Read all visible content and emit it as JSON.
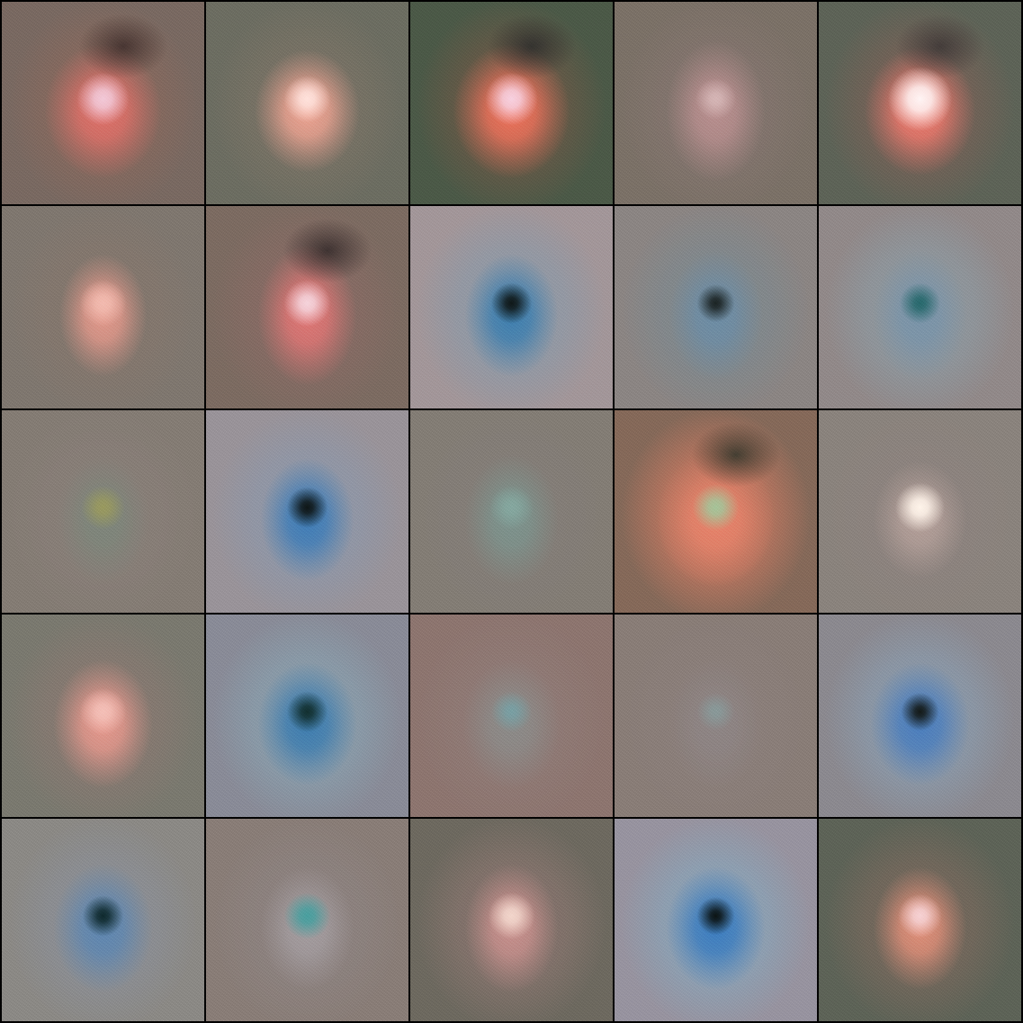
{
  "grid": {
    "rows": 5,
    "cols": 5,
    "tiles": [
      {
        "bg": "#7a6a62",
        "halo": "#8b6a5e",
        "blob": "#e0716a",
        "core": "#f2c9d8",
        "dark": "#3a2a28",
        "blobShape": [
          1.0,
          1.15
        ],
        "coreSize": 0.12
      },
      {
        "bg": "#6d6e62",
        "halo": "#7c7467",
        "blob": "#eea493",
        "core": "#ffe2dc",
        "dark": "",
        "blobShape": [
          0.9,
          1.05
        ],
        "coreSize": 0.1
      },
      {
        "bg": "#4c5a48",
        "halo": "#6f5a48",
        "blob": "#f0735c",
        "core": "#f7d1e0",
        "dark": "#2a2a2a",
        "blobShape": [
          1.0,
          1.15
        ],
        "coreSize": 0.12
      },
      {
        "bg": "#7c7268",
        "halo": "#857670",
        "blob": "#b99090",
        "core": "#d5b6b6",
        "dark": "",
        "blobShape": [
          0.85,
          1.2
        ],
        "coreSize": 0.08
      },
      {
        "bg": "#5e6458",
        "halo": "#7a6258",
        "blob": "#f07a6e",
        "core": "#fff4f4",
        "dark": "#3a3434",
        "blobShape": [
          0.95,
          1.1
        ],
        "coreSize": 0.16
      },
      {
        "bg": "#807870",
        "halo": "#86786e",
        "blob": "#e2998c",
        "core": "#f2bbb0",
        "dark": "",
        "blobShape": [
          0.75,
          1.05
        ],
        "coreSize": 0.1
      },
      {
        "bg": "#7d6c62",
        "halo": "#8a6c66",
        "blob": "#e07776",
        "core": "#f5d4dc",
        "dark": "#2e2626",
        "blobShape": [
          0.85,
          1.2
        ],
        "coreSize": 0.1
      },
      {
        "bg": "#a3979a",
        "halo": "#8d9aa8",
        "blob": "#3e80b0",
        "core": "#101818",
        "dark": "",
        "blobShape": [
          0.8,
          1.05
        ],
        "coreSize": 0.08
      },
      {
        "bg": "#8c8684",
        "halo": "#7f8a90",
        "blob": "#6e8ea6",
        "core": "#1c2424",
        "dark": "",
        "blobShape": [
          0.8,
          1.1
        ],
        "coreSize": 0.07
      },
      {
        "bg": "#928a8a",
        "halo": "#8e9aa2",
        "blob": "#7b95aa",
        "core": "#286a6e",
        "dark": "",
        "blobShape": [
          0.8,
          1.1
        ],
        "coreSize": 0.08
      },
      {
        "bg": "#857d75",
        "halo": "#8a807a",
        "blob": "#7f877c",
        "core": "#9a9a60",
        "dark": "",
        "blobShape": [
          0.8,
          1.1
        ],
        "coreSize": 0.09
      },
      {
        "bg": "#9a949a",
        "halo": "#8e98aa",
        "blob": "#3f7eb8",
        "core": "#0f1616",
        "dark": "",
        "blobShape": [
          0.8,
          1.05
        ],
        "coreSize": 0.08
      },
      {
        "bg": "#847e76",
        "halo": "#857f7a",
        "blob": "#7e948e",
        "core": "#86a8a0",
        "dark": "",
        "blobShape": [
          0.8,
          1.1
        ],
        "coreSize": 0.09
      },
      {
        "bg": "#866a5a",
        "halo": "#c97a62",
        "blob": "#e7846c",
        "core": "#a6c49a",
        "dark": "#2a3228",
        "blobShape": [
          1.0,
          1.15
        ],
        "coreSize": 0.1
      },
      {
        "bg": "#8b847e",
        "halo": "#8e8480",
        "blob": "#b4a09a",
        "core": "#fff4ea",
        "dark": "",
        "blobShape": [
          0.8,
          1.0
        ],
        "coreSize": 0.11
      },
      {
        "bg": "#7b7a70",
        "halo": "#8a7a72",
        "blob": "#e6998e",
        "core": "#f4c0b8",
        "dark": "",
        "blobShape": [
          0.85,
          1.1
        ],
        "coreSize": 0.1
      },
      {
        "bg": "#8a8c98",
        "halo": "#8aa0ae",
        "blob": "#3e7eb0",
        "core": "#123030",
        "dark": "",
        "blobShape": [
          0.85,
          1.05
        ],
        "coreSize": 0.08
      },
      {
        "bg": "#8e7670",
        "halo": "#907c78",
        "blob": "#8d8c8a",
        "core": "#7aa0a4",
        "dark": "",
        "blobShape": [
          0.85,
          1.1
        ],
        "coreSize": 0.08
      },
      {
        "bg": "#8a7e78",
        "halo": "#8c807c",
        "blob": "#8f8686",
        "core": "#8a9a9a",
        "dark": "",
        "blobShape": [
          0.8,
          1.1
        ],
        "coreSize": 0.07
      },
      {
        "bg": "#8c8a90",
        "halo": "#8b9cae",
        "blob": "#4b7fbe",
        "core": "#141a18",
        "dark": "",
        "blobShape": [
          0.85,
          1.05
        ],
        "coreSize": 0.07
      },
      {
        "bg": "#8c8a86",
        "halo": "#8c9098",
        "blob": "#5f88b2",
        "core": "#0f2a2e",
        "dark": "",
        "blobShape": [
          0.85,
          1.1
        ],
        "coreSize": 0.08
      },
      {
        "bg": "#8a7e78",
        "halo": "#8e8482",
        "blob": "#a49da0",
        "core": "#4aa0a0",
        "dark": "",
        "blobShape": [
          0.8,
          1.05
        ],
        "coreSize": 0.1
      },
      {
        "bg": "#6e6a60",
        "halo": "#8a7670",
        "blob": "#c8918e",
        "core": "#f2d6cc",
        "dark": "",
        "blobShape": [
          0.8,
          1.1
        ],
        "coreSize": 0.1
      },
      {
        "bg": "#9894a0",
        "halo": "#8aa4b8",
        "blob": "#3c7ec0",
        "core": "#0c1414",
        "dark": "",
        "blobShape": [
          0.85,
          1.05
        ],
        "coreSize": 0.07
      },
      {
        "bg": "#5e6458",
        "halo": "#7a6a5e",
        "blob": "#e0907a",
        "core": "#f6d2d4",
        "dark": "",
        "blobShape": [
          0.8,
          1.05
        ],
        "coreSize": 0.09
      }
    ]
  }
}
